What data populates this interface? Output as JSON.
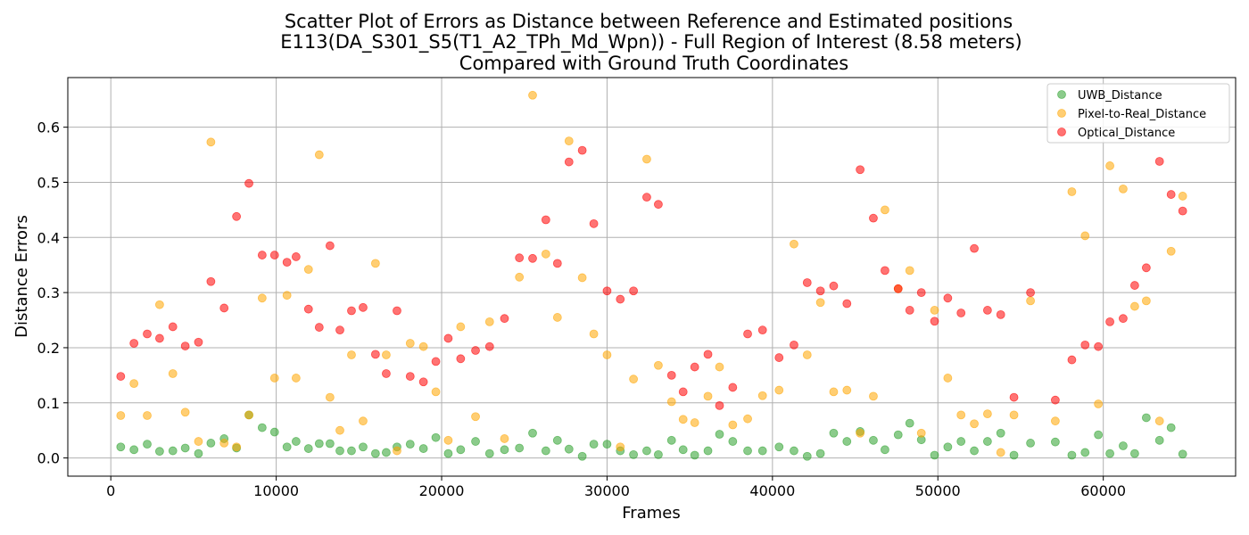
{
  "chart_data": {
    "type": "scatter",
    "title_lines": [
      "Scatter Plot of Errors as Distance between Reference and Estimated positions",
      "E113(DA_S301_S5(T1_A2_TPh_Md_Wpn)) - Full Region of Interest (8.58 meters)",
      "Compared with Ground Truth Coordinates"
    ],
    "xlabel": "Frames",
    "ylabel": "Distance Errors",
    "xlim": [
      -2600,
      68000
    ],
    "ylim": [
      -0.033,
      0.69
    ],
    "x_ticks": [
      0,
      10000,
      20000,
      30000,
      40000,
      50000,
      60000
    ],
    "y_ticks": [
      0.0,
      0.1,
      0.2,
      0.3,
      0.4,
      0.5,
      0.6
    ],
    "x_tick_labels": [
      "0",
      "10000",
      "20000",
      "30000",
      "40000",
      "50000",
      "60000"
    ],
    "y_tick_labels": [
      "0.0",
      "0.1",
      "0.2",
      "0.3",
      "0.4",
      "0.5",
      "0.6"
    ],
    "grid": true,
    "legend_position": "top-right",
    "series": [
      {
        "name": "UWB_Distance",
        "color": "#2ca02c",
        "points": [
          [
            600,
            0.02
          ],
          [
            1400,
            0.015
          ],
          [
            2200,
            0.025
          ],
          [
            2950,
            0.012
          ],
          [
            3750,
            0.013
          ],
          [
            4500,
            0.018
          ],
          [
            5300,
            0.008
          ],
          [
            6050,
            0.027
          ],
          [
            6850,
            0.035
          ],
          [
            7600,
            0.018
          ],
          [
            8350,
            0.078
          ],
          [
            9150,
            0.055
          ],
          [
            9900,
            0.047
          ],
          [
            10650,
            0.02
          ],
          [
            11200,
            0.03
          ],
          [
            11950,
            0.017
          ],
          [
            12600,
            0.026
          ],
          [
            13250,
            0.026
          ],
          [
            13850,
            0.013
          ],
          [
            14550,
            0.013
          ],
          [
            15250,
            0.02
          ],
          [
            16000,
            0.008
          ],
          [
            16650,
            0.01
          ],
          [
            17300,
            0.02
          ],
          [
            18100,
            0.025
          ],
          [
            18900,
            0.017
          ],
          [
            19650,
            0.037
          ],
          [
            20400,
            0.008
          ],
          [
            21150,
            0.015
          ],
          [
            22050,
            0.03
          ],
          [
            22900,
            0.008
          ],
          [
            23800,
            0.015
          ],
          [
            24700,
            0.018
          ],
          [
            25500,
            0.045
          ],
          [
            26300,
            0.013
          ],
          [
            27000,
            0.032
          ],
          [
            27700,
            0.016
          ],
          [
            28500,
            0.003
          ],
          [
            29200,
            0.025
          ],
          [
            30000,
            0.025
          ],
          [
            30800,
            0.013
          ],
          [
            31600,
            0.006
          ],
          [
            32400,
            0.013
          ],
          [
            33100,
            0.006
          ],
          [
            33900,
            0.032
          ],
          [
            34600,
            0.015
          ],
          [
            35300,
            0.005
          ],
          [
            36100,
            0.013
          ],
          [
            36800,
            0.043
          ],
          [
            37600,
            0.03
          ],
          [
            38500,
            0.013
          ],
          [
            39400,
            0.013
          ],
          [
            40400,
            0.02
          ],
          [
            41300,
            0.013
          ],
          [
            42100,
            0.003
          ],
          [
            42900,
            0.008
          ],
          [
            43700,
            0.045
          ],
          [
            44500,
            0.03
          ],
          [
            45300,
            0.048
          ],
          [
            46100,
            0.032
          ],
          [
            46800,
            0.015
          ],
          [
            47600,
            0.042
          ],
          [
            48300,
            0.063
          ],
          [
            49000,
            0.033
          ],
          [
            49800,
            0.005
          ],
          [
            50600,
            0.02
          ],
          [
            51400,
            0.03
          ],
          [
            52200,
            0.013
          ],
          [
            53000,
            0.03
          ],
          [
            53800,
            0.045
          ],
          [
            54600,
            0.005
          ],
          [
            55600,
            0.027
          ],
          [
            57100,
            0.029
          ],
          [
            58100,
            0.005
          ],
          [
            58900,
            0.01
          ],
          [
            59700,
            0.042
          ],
          [
            60400,
            0.008
          ],
          [
            61200,
            0.022
          ],
          [
            61900,
            0.008
          ],
          [
            62600,
            0.073
          ],
          [
            63400,
            0.032
          ],
          [
            64100,
            0.055
          ],
          [
            64800,
            0.007
          ]
        ]
      },
      {
        "name": "Pixel-to-Real_Distance",
        "color": "#ffa500",
        "points": [
          [
            600,
            0.077
          ],
          [
            1400,
            0.135
          ],
          [
            2200,
            0.077
          ],
          [
            2950,
            0.278
          ],
          [
            3750,
            0.153
          ],
          [
            4500,
            0.083
          ],
          [
            5300,
            0.03
          ],
          [
            6050,
            0.573
          ],
          [
            6850,
            0.027
          ],
          [
            7600,
            0.02
          ],
          [
            8350,
            0.078
          ],
          [
            9150,
            0.29
          ],
          [
            9900,
            0.145
          ],
          [
            10650,
            0.295
          ],
          [
            11200,
            0.145
          ],
          [
            11950,
            0.342
          ],
          [
            12600,
            0.55
          ],
          [
            13250,
            0.11
          ],
          [
            13850,
            0.05
          ],
          [
            14550,
            0.187
          ],
          [
            15250,
            0.067
          ],
          [
            16000,
            0.353
          ],
          [
            16650,
            0.187
          ],
          [
            17300,
            0.013
          ],
          [
            18100,
            0.208
          ],
          [
            18900,
            0.202
          ],
          [
            19650,
            0.12
          ],
          [
            20400,
            0.032
          ],
          [
            21150,
            0.238
          ],
          [
            22050,
            0.075
          ],
          [
            22900,
            0.247
          ],
          [
            23800,
            0.035
          ],
          [
            24700,
            0.328
          ],
          [
            25500,
            0.658
          ],
          [
            26300,
            0.37
          ],
          [
            27000,
            0.255
          ],
          [
            27700,
            0.575
          ],
          [
            28500,
            0.327
          ],
          [
            29200,
            0.225
          ],
          [
            30000,
            0.187
          ],
          [
            30800,
            0.02
          ],
          [
            31600,
            0.143
          ],
          [
            32400,
            0.542
          ],
          [
            33100,
            0.168
          ],
          [
            33900,
            0.102
          ],
          [
            34600,
            0.07
          ],
          [
            35300,
            0.064
          ],
          [
            36100,
            0.112
          ],
          [
            36800,
            0.165
          ],
          [
            37600,
            0.06
          ],
          [
            38500,
            0.071
          ],
          [
            39400,
            0.113
          ],
          [
            40400,
            0.123
          ],
          [
            41300,
            0.388
          ],
          [
            42100,
            0.187
          ],
          [
            42900,
            0.282
          ],
          [
            43700,
            0.12
          ],
          [
            44500,
            0.123
          ],
          [
            45300,
            0.045
          ],
          [
            46100,
            0.112
          ],
          [
            46800,
            0.45
          ],
          [
            47600,
            0.307
          ],
          [
            48300,
            0.34
          ],
          [
            49000,
            0.045
          ],
          [
            49800,
            0.268
          ],
          [
            50600,
            0.145
          ],
          [
            51400,
            0.078
          ],
          [
            52200,
            0.062
          ],
          [
            53000,
            0.08
          ],
          [
            53800,
            0.01
          ],
          [
            54600,
            0.078
          ],
          [
            55600,
            0.285
          ],
          [
            57100,
            0.067
          ],
          [
            58100,
            0.483
          ],
          [
            58900,
            0.403
          ],
          [
            59700,
            0.098
          ],
          [
            60400,
            0.53
          ],
          [
            61200,
            0.488
          ],
          [
            61900,
            0.275
          ],
          [
            62600,
            0.285
          ],
          [
            63400,
            0.067
          ],
          [
            64100,
            0.375
          ],
          [
            64800,
            0.475
          ]
        ]
      },
      {
        "name": "Optical_Distance",
        "color": "#ff0000",
        "points": [
          [
            600,
            0.148
          ],
          [
            1400,
            0.208
          ],
          [
            2200,
            0.225
          ],
          [
            2950,
            0.217
          ],
          [
            3750,
            0.238
          ],
          [
            4500,
            0.203
          ],
          [
            5300,
            0.21
          ],
          [
            6050,
            0.32
          ],
          [
            6850,
            0.272
          ],
          [
            7600,
            0.438
          ],
          [
            8350,
            0.498
          ],
          [
            9150,
            0.368
          ],
          [
            9900,
            0.368
          ],
          [
            10650,
            0.355
          ],
          [
            11200,
            0.365
          ],
          [
            11950,
            0.27
          ],
          [
            12600,
            0.237
          ],
          [
            13250,
            0.385
          ],
          [
            13850,
            0.232
          ],
          [
            14550,
            0.267
          ],
          [
            15250,
            0.273
          ],
          [
            16000,
            0.188
          ],
          [
            16650,
            0.153
          ],
          [
            17300,
            0.267
          ],
          [
            18100,
            0.148
          ],
          [
            18900,
            0.138
          ],
          [
            19650,
            0.175
          ],
          [
            20400,
            0.217
          ],
          [
            21150,
            0.18
          ],
          [
            22050,
            0.195
          ],
          [
            22900,
            0.202
          ],
          [
            23800,
            0.253
          ],
          [
            24700,
            0.363
          ],
          [
            25500,
            0.362
          ],
          [
            26300,
            0.432
          ],
          [
            27000,
            0.353
          ],
          [
            27700,
            0.537
          ],
          [
            28500,
            0.558
          ],
          [
            29200,
            0.425
          ],
          [
            30000,
            0.303
          ],
          [
            30800,
            0.288
          ],
          [
            31600,
            0.303
          ],
          [
            32400,
            0.473
          ],
          [
            33100,
            0.46
          ],
          [
            33900,
            0.15
          ],
          [
            34600,
            0.12
          ],
          [
            35300,
            0.165
          ],
          [
            36100,
            0.188
          ],
          [
            36800,
            0.095
          ],
          [
            37600,
            0.128
          ],
          [
            38500,
            0.225
          ],
          [
            39400,
            0.232
          ],
          [
            40400,
            0.182
          ],
          [
            41300,
            0.205
          ],
          [
            42100,
            0.318
          ],
          [
            42900,
            0.303
          ],
          [
            43700,
            0.312
          ],
          [
            44500,
            0.28
          ],
          [
            45300,
            0.523
          ],
          [
            46100,
            0.435
          ],
          [
            46800,
            0.34
          ],
          [
            47600,
            0.307
          ],
          [
            48300,
            0.268
          ],
          [
            49000,
            0.3
          ],
          [
            49800,
            0.248
          ],
          [
            50600,
            0.29
          ],
          [
            51400,
            0.263
          ],
          [
            52200,
            0.38
          ],
          [
            53000,
            0.268
          ],
          [
            53800,
            0.26
          ],
          [
            54600,
            0.11
          ],
          [
            55600,
            0.3
          ],
          [
            57100,
            0.105
          ],
          [
            58100,
            0.178
          ],
          [
            58900,
            0.205
          ],
          [
            59700,
            0.202
          ],
          [
            60400,
            0.247
          ],
          [
            61200,
            0.253
          ],
          [
            61900,
            0.313
          ],
          [
            62600,
            0.345
          ],
          [
            63400,
            0.538
          ],
          [
            64100,
            0.478
          ],
          [
            64800,
            0.448
          ]
        ]
      }
    ]
  }
}
